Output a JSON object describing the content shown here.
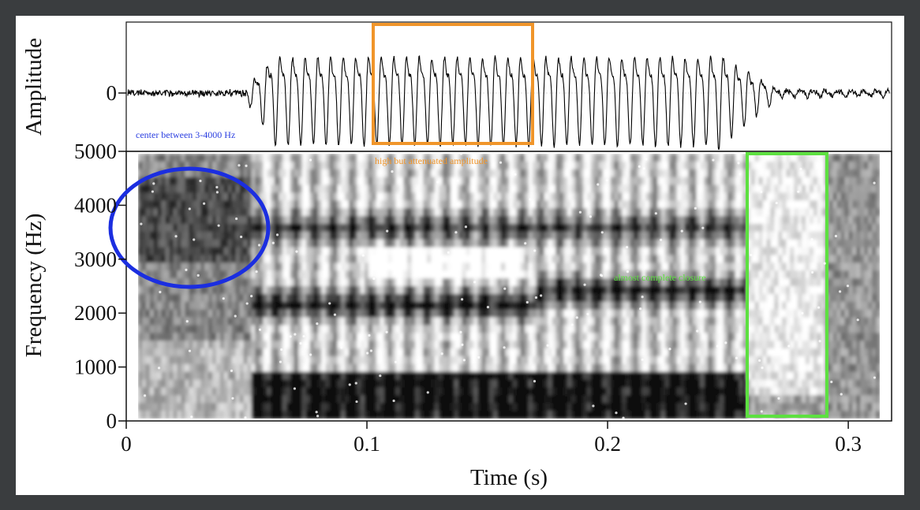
{
  "chart_data": [
    {
      "type": "line",
      "ylabel": "Amplitude",
      "yticks": [
        0
      ]
    },
    {
      "type": "spectrogram",
      "ylabel": "Frequency (Hz)",
      "xlabel": "Time (s)",
      "xlim": [
        0,
        0.318
      ],
      "xticks": [
        0,
        0.1,
        0.2,
        0.3
      ],
      "ylim": [
        0,
        5000
      ],
      "yticks": [
        0,
        1000,
        2000,
        3000,
        4000,
        5000
      ]
    }
  ],
  "annotations": {
    "blue_note": "center between 3-4000 Hz",
    "orange_note": "high but attenuated amplitude",
    "green_note": "almost complete closure"
  }
}
